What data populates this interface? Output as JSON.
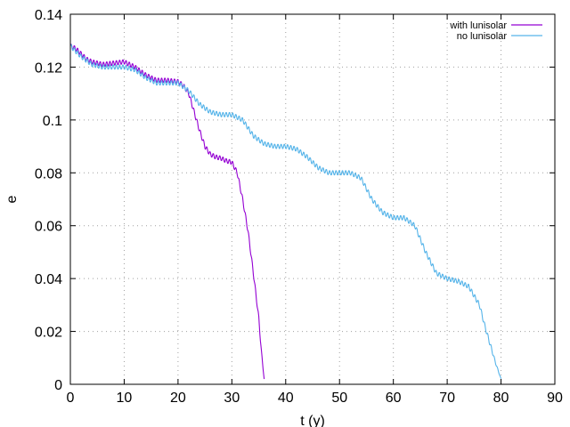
{
  "chart_data": {
    "type": "line",
    "xlabel": "t (y)",
    "ylabel": "e",
    "xlim": [
      0,
      90
    ],
    "ylim": [
      0,
      0.14
    ],
    "xticks": [
      0,
      10,
      20,
      30,
      40,
      50,
      60,
      70,
      80,
      90
    ],
    "xtick_labels": [
      "0",
      "10",
      "20",
      "30",
      "40",
      "50",
      "60",
      "70",
      "80",
      "90"
    ],
    "yticks": [
      0,
      0.02,
      0.04,
      0.06,
      0.08,
      0.1,
      0.12,
      0.14
    ],
    "ytick_labels": [
      "0",
      "0.02",
      "0.04",
      "0.06",
      "0.08",
      "0.1",
      "0.12",
      "0.14"
    ],
    "grid": true,
    "legend_position": "top-right",
    "series": [
      {
        "name": "with lunisolar",
        "color": "#9400d3",
        "x": [
          0,
          1,
          2,
          3,
          4,
          6,
          8,
          10,
          12,
          14,
          16,
          18,
          20,
          21,
          22,
          23,
          24,
          25,
          26,
          27,
          28,
          29,
          30,
          31,
          32,
          33,
          34,
          35,
          35.5,
          36
        ],
        "y": [
          0.128,
          0.127,
          0.125,
          0.123,
          0.122,
          0.121,
          0.1215,
          0.122,
          0.12,
          0.117,
          0.115,
          0.115,
          0.1145,
          0.113,
          0.11,
          0.103,
          0.096,
          0.09,
          0.087,
          0.086,
          0.0855,
          0.0845,
          0.084,
          0.08,
          0.07,
          0.058,
          0.042,
          0.025,
          0.012,
          0.002
        ]
      },
      {
        "name": "no lunisolar",
        "color": "#56b4e9",
        "x": [
          0,
          2,
          4,
          6,
          8,
          10,
          12,
          14,
          16,
          18,
          20,
          22,
          24,
          26,
          28,
          30,
          32,
          34,
          36,
          38,
          40,
          42,
          44,
          46,
          48,
          50,
          52,
          54,
          56,
          58,
          60,
          62,
          64,
          66,
          68,
          70,
          72,
          74,
          76,
          77,
          78,
          79,
          80
        ],
        "y": [
          0.128,
          0.124,
          0.121,
          0.12,
          0.12,
          0.12,
          0.119,
          0.116,
          0.114,
          0.114,
          0.114,
          0.111,
          0.106,
          0.103,
          0.102,
          0.102,
          0.1,
          0.094,
          0.091,
          0.09,
          0.09,
          0.089,
          0.086,
          0.082,
          0.08,
          0.08,
          0.08,
          0.078,
          0.07,
          0.065,
          0.063,
          0.063,
          0.06,
          0.05,
          0.042,
          0.04,
          0.039,
          0.037,
          0.03,
          0.022,
          0.015,
          0.008,
          0.002
        ]
      }
    ]
  }
}
